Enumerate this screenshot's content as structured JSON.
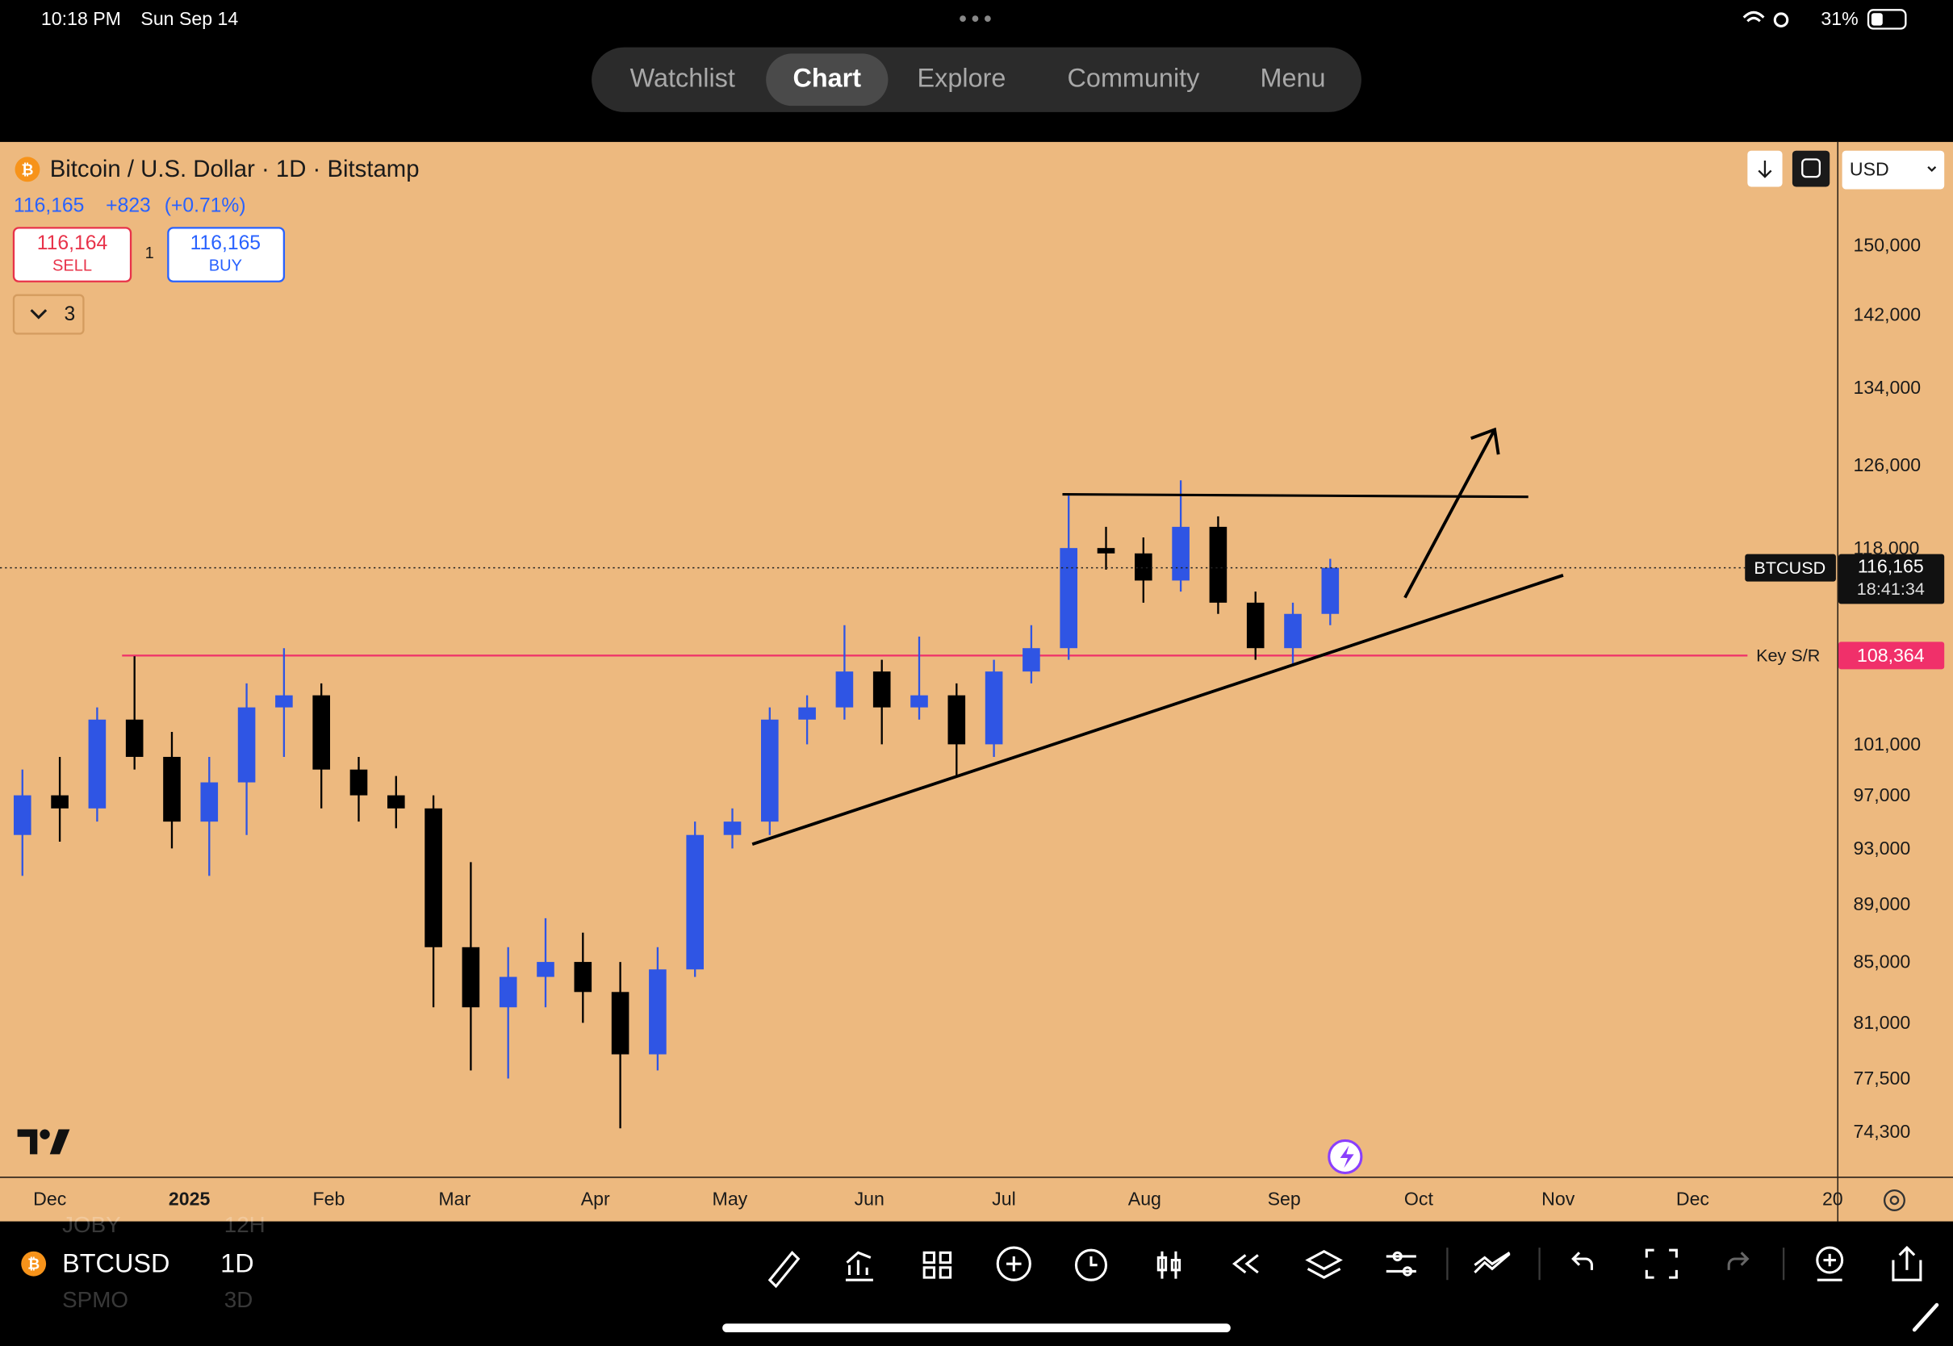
{
  "status_bar": {
    "time": "10:18 PM",
    "date": "Sun Sep 14",
    "battery": "31%"
  },
  "tabs": [
    "Watchlist",
    "Chart",
    "Explore",
    "Community",
    "Menu"
  ],
  "header": {
    "title": "Bitcoin / U.S. Dollar · 1D · Bitstamp",
    "quote": {
      "last": "116,165",
      "change": "+823",
      "change_pct": "(+0.71%)"
    },
    "sell": {
      "price": "116,164",
      "label": "SELL"
    },
    "spread": "1",
    "buy": {
      "price": "116,165",
      "label": "BUY"
    },
    "indicators_count": "3",
    "currency": "USD"
  },
  "chart_data": {
    "type": "candlestick",
    "log_scale": true,
    "up_color": "#2f55e4",
    "down_color": "#000000",
    "categories": [
      null,
      null,
      null,
      null,
      null,
      null,
      null,
      null,
      null,
      null,
      null,
      null,
      null,
      null,
      null,
      null,
      null,
      null,
      null,
      null,
      null,
      null,
      null,
      null,
      null,
      null,
      null,
      null,
      null,
      null,
      null,
      null,
      null,
      null,
      null,
      null
    ],
    "open": [
      94000,
      97000,
      96000,
      103000,
      100000,
      95000,
      98000,
      104000,
      105000,
      99000,
      97000,
      96000,
      86000,
      82000,
      84000,
      85000,
      83000,
      79000,
      84500,
      94000,
      95000,
      103000,
      104000,
      107000,
      104000,
      105000,
      101000,
      107000,
      109000,
      118000,
      117500,
      115000,
      120000,
      113000,
      109000,
      112000
    ],
    "high": [
      99000,
      100000,
      104000,
      108300,
      102000,
      100000,
      106000,
      109000,
      106000,
      100000,
      98500,
      97000,
      92000,
      86000,
      88000,
      87000,
      85000,
      86000,
      95000,
      96000,
      104000,
      105000,
      111000,
      108000,
      110000,
      106000,
      108000,
      111000,
      123000,
      120000,
      119000,
      124500,
      121000,
      114000,
      113000,
      117000
    ],
    "low": [
      91000,
      93500,
      95000,
      99000,
      93000,
      91000,
      94000,
      100000,
      96000,
      95000,
      94500,
      82000,
      78000,
      77500,
      82000,
      81000,
      74500,
      78000,
      84000,
      93000,
      94000,
      101000,
      103000,
      101000,
      103000,
      98500,
      100000,
      106000,
      108000,
      116000,
      113000,
      114000,
      112000,
      108000,
      107500,
      111000
    ],
    "close": [
      97000,
      96000,
      103000,
      100000,
      95000,
      98000,
      104000,
      105000,
      99000,
      97000,
      96000,
      86000,
      82000,
      84000,
      85000,
      83000,
      79000,
      84500,
      94000,
      95000,
      103000,
      104000,
      107000,
      104000,
      105000,
      101000,
      107000,
      109000,
      118000,
      117500,
      115000,
      120000,
      113000,
      109000,
      112000,
      116165
    ],
    "ylim": [
      71700,
      162800
    ],
    "yticks": [
      {
        "value": 150000,
        "label": "150,000"
      },
      {
        "value": 142000,
        "label": "142,000"
      },
      {
        "value": 134000,
        "label": "134,000"
      },
      {
        "value": 126000,
        "label": "126,000"
      },
      {
        "value": 118000,
        "label": "118,000"
      },
      {
        "value": 101000,
        "label": "101,000"
      },
      {
        "value": 97000,
        "label": "97,000"
      },
      {
        "value": 93000,
        "label": "93,000"
      },
      {
        "value": 89000,
        "label": "89,000"
      },
      {
        "value": 85000,
        "label": "85,000"
      },
      {
        "value": 81000,
        "label": "81,000"
      },
      {
        "value": 77500,
        "label": "77,500"
      },
      {
        "value": 74300,
        "label": "74,300"
      }
    ],
    "x_labels": [
      "Dec",
      "2025",
      "Feb",
      "Mar",
      "Apr",
      "May",
      "Jun",
      "Jul",
      "Aug",
      "Sep",
      "Oct",
      "Nov",
      "Dec",
      "20"
    ],
    "symbol": "BTCUSD",
    "last_price": {
      "value": 116165,
      "label": "116,165"
    },
    "countdown": "18:41:34",
    "levels": [
      {
        "name": "Key S/R",
        "value": 108364,
        "label": "108,364",
        "color": "#f0306a"
      }
    ]
  },
  "toolbar": {
    "symbol": "BTCUSD",
    "interval": "1D",
    "ghost": [
      "JOBY",
      "12H",
      "SPMO",
      "3D"
    ]
  }
}
